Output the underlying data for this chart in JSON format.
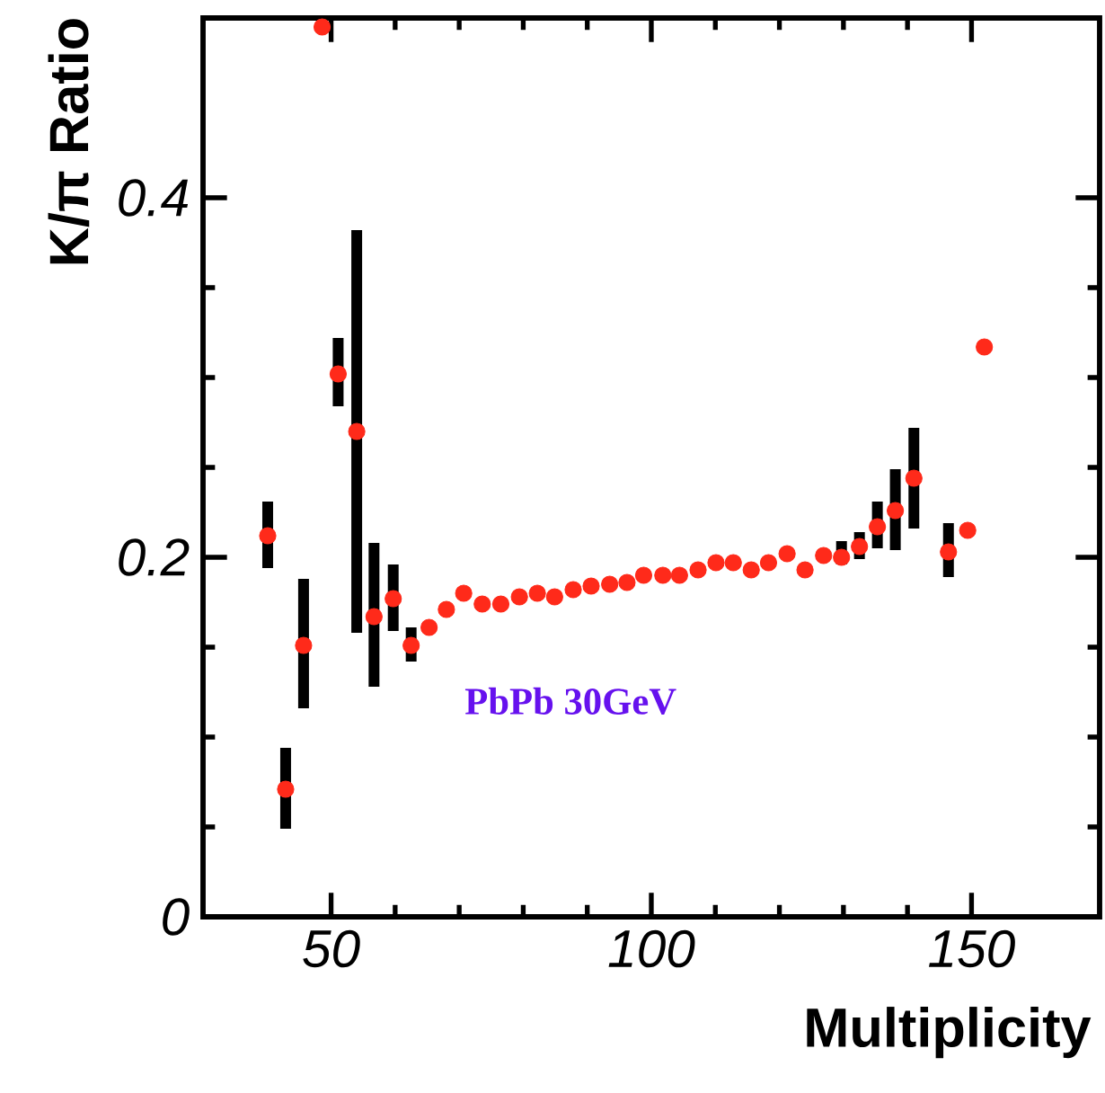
{
  "chart_data": {
    "type": "scatter",
    "xlabel": "Multiplicity",
    "ylabel": "K/π Ratio",
    "x": [
      40.1,
      42.9,
      45.7,
      48.6,
      51.1,
      54.0,
      56.7,
      59.7,
      62.5,
      65.3,
      68.0,
      70.7,
      73.6,
      76.5,
      79.4,
      82.2,
      84.9,
      87.8,
      90.6,
      93.5,
      96.2,
      98.8,
      101.8,
      104.4,
      107.3,
      110.1,
      112.8,
      115.6,
      118.3,
      121.2,
      124.0,
      126.9,
      129.7,
      132.5,
      135.3,
      138.1,
      141.0,
      146.4,
      149.4,
      152.0
    ],
    "values": [
      0.212,
      0.071,
      0.151,
      0.495,
      0.302,
      0.27,
      0.167,
      0.177,
      0.151,
      0.161,
      0.171,
      0.18,
      0.174,
      0.174,
      0.178,
      0.18,
      0.178,
      0.182,
      0.184,
      0.185,
      0.186,
      0.19,
      0.19,
      0.19,
      0.193,
      0.197,
      0.197,
      0.193,
      0.197,
      0.202,
      0.193,
      0.201,
      0.2,
      0.206,
      0.217,
      0.226,
      0.244,
      0.203,
      0.215,
      0.317
    ],
    "errors": [
      [
        0.194,
        0.231
      ],
      [
        0.049,
        0.094
      ],
      [
        0.116,
        0.188
      ],
      null,
      [
        0.284,
        0.322
      ],
      [
        0.158,
        0.382
      ],
      [
        0.128,
        0.208
      ],
      [
        0.159,
        0.196
      ],
      [
        0.142,
        0.161
      ],
      null,
      null,
      null,
      null,
      null,
      null,
      null,
      null,
      null,
      null,
      null,
      null,
      null,
      null,
      null,
      null,
      null,
      null,
      null,
      null,
      null,
      null,
      null,
      [
        0.196,
        0.209
      ],
      [
        0.199,
        0.214
      ],
      [
        0.205,
        0.231
      ],
      [
        0.204,
        0.249
      ],
      [
        0.216,
        0.272
      ],
      [
        0.189,
        0.219
      ],
      null,
      null
    ],
    "color": "#ff2a1a",
    "marker": "circle",
    "xlim": [
      30,
      170
    ],
    "ylim": [
      0,
      0.5
    ],
    "xticks": [
      50,
      100,
      150
    ],
    "yticks": [
      0,
      0.2,
      0.4
    ],
    "annotations": [
      "PbPb 30GeV"
    ]
  }
}
